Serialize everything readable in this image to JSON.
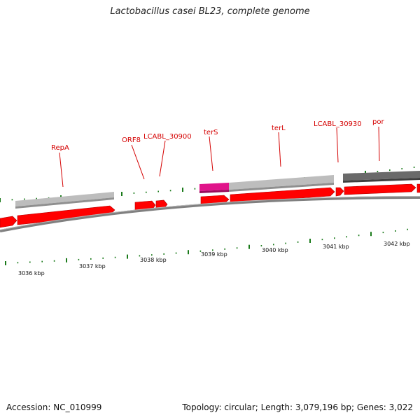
{
  "title": "Lactobacillus casei BL23, complete genome",
  "footer": {
    "accession": "Accession: NC_010999",
    "summary": "Topology: circular; Length: 3,079,196 bp; Genes: 3,022"
  },
  "colors": {
    "gene": "#ff0000",
    "gene_edge": "#b00000",
    "homolog_light": "#c0c0c0",
    "homolog_dark": "#6a6a6a",
    "homolog_magenta": "#e0148a",
    "tick": "#1a7a1a",
    "label": "#d40000",
    "backbone": "#808080"
  },
  "gene_labels": [
    "RepA",
    "ORF8",
    "LCABL_30900",
    "terS",
    "terL",
    "LCABL_30930",
    "por"
  ],
  "kbp_labels": [
    "3036 kbp",
    "3037 kbp",
    "3038 kbp",
    "3039 kbp",
    "3040 kbp",
    "3041 kbp",
    "3042 kbp"
  ]
}
